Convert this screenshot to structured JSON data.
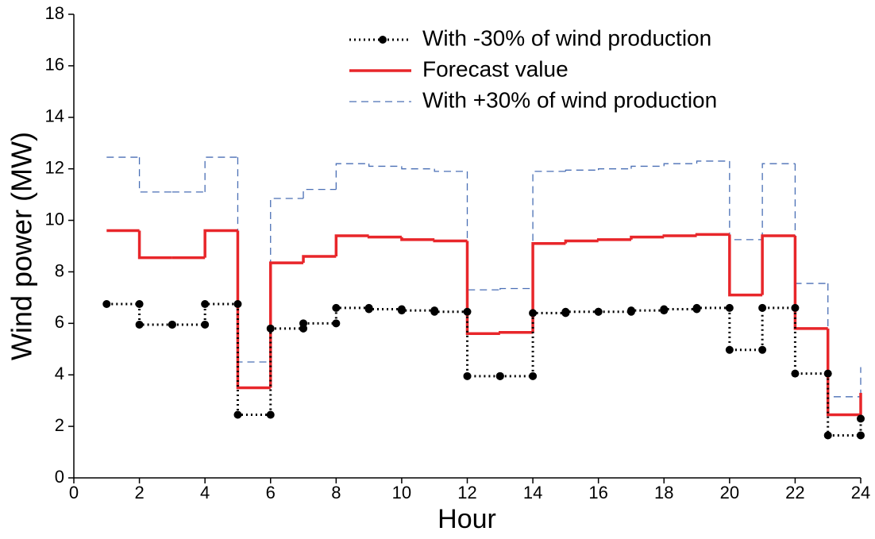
{
  "chart_data": {
    "type": "step",
    "x_label": "Hour",
    "y_label": "Wind power (MW)",
    "x": [
      1,
      2,
      3,
      4,
      5,
      6,
      7,
      8,
      9,
      10,
      11,
      12,
      13,
      14,
      15,
      16,
      17,
      18,
      19,
      20,
      21,
      22,
      23,
      24
    ],
    "series": [
      {
        "name": "With -30%  of wind production",
        "color": "#000000",
        "style": "dotted-marker",
        "values": [
          6.75,
          5.95,
          5.95,
          6.75,
          2.45,
          5.8,
          6.0,
          6.6,
          6.55,
          6.5,
          6.45,
          3.95,
          3.95,
          6.4,
          6.45,
          6.45,
          6.5,
          6.55,
          6.6,
          4.97,
          6.6,
          4.05,
          1.65,
          2.3
        ]
      },
      {
        "name": "Forecast value",
        "color": "#e8262a",
        "style": "solid",
        "values": [
          9.6,
          8.55,
          8.55,
          9.6,
          3.5,
          8.35,
          8.6,
          9.4,
          9.35,
          9.25,
          9.2,
          5.6,
          5.65,
          9.1,
          9.2,
          9.25,
          9.35,
          9.4,
          9.45,
          7.1,
          9.4,
          5.8,
          2.45,
          3.3
        ]
      },
      {
        "name": "With +30%  of wind production",
        "color": "#4a6fb5",
        "style": "dashed",
        "values": [
          12.45,
          11.1,
          11.1,
          12.45,
          4.5,
          10.85,
          11.2,
          12.2,
          12.1,
          12.0,
          11.9,
          7.3,
          7.35,
          11.9,
          11.95,
          12.0,
          12.1,
          12.2,
          12.3,
          9.25,
          12.2,
          7.55,
          3.15,
          4.3
        ]
      }
    ],
    "xlim": [
      0,
      24
    ],
    "xticks": [
      0,
      2,
      4,
      6,
      8,
      10,
      12,
      14,
      16,
      18,
      20,
      22,
      24
    ],
    "ylim": [
      0,
      18
    ],
    "yticks": [
      0,
      2,
      4,
      6,
      8,
      10,
      12,
      14,
      16,
      18
    ],
    "legend": "top-center"
  }
}
